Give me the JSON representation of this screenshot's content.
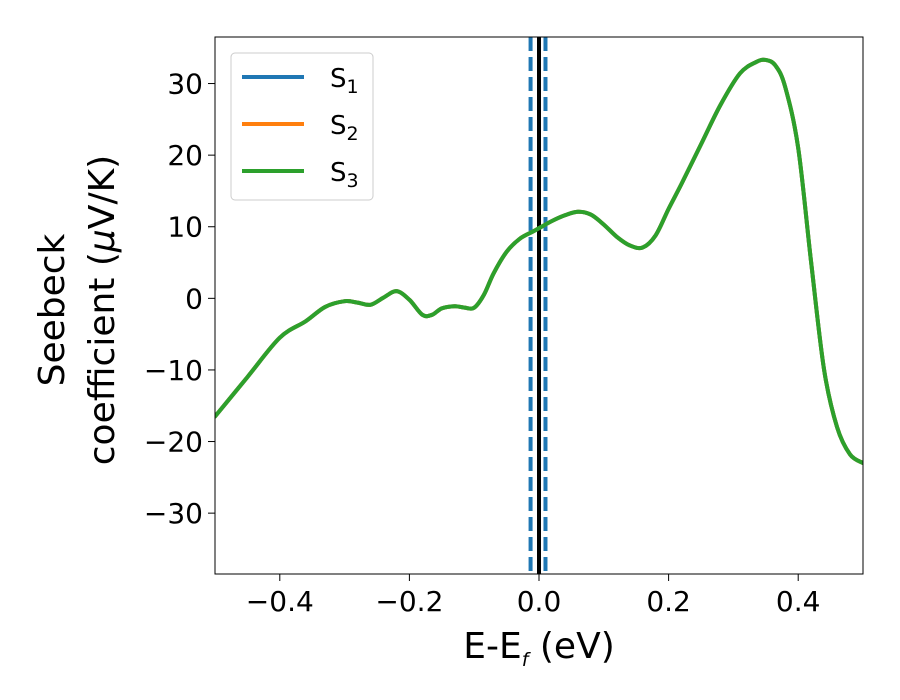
{
  "chart_data": {
    "type": "line",
    "xlabel": {
      "main": "E-E",
      "sub": "f",
      "suffix": " (eV)"
    },
    "ylabel": {
      "line1": "Seebeck",
      "line2_main": "coefficient  (",
      "line2_mu": "μ",
      "line2_suffix": "V/K)"
    },
    "xlim": [
      -0.5,
      0.5
    ],
    "ylim": [
      -38.5,
      36.5
    ],
    "xticks": [
      -0.4,
      -0.2,
      0.0,
      0.2,
      0.4
    ],
    "xtick_labels": [
      "−0.4",
      "−0.2",
      "0.0",
      "0.2",
      "0.4"
    ],
    "yticks": [
      -30,
      -20,
      -10,
      0,
      10,
      20,
      30
    ],
    "ytick_labels": [
      "−30",
      "−20",
      "−10",
      "0",
      "10",
      "20",
      "30"
    ],
    "grid": false,
    "legend": {
      "placement": "top-left",
      "entries": [
        {
          "main": "S",
          "sub": "1",
          "color": "#1f77b4"
        },
        {
          "main": "S",
          "sub": "2",
          "color": "#ff7f0e"
        },
        {
          "main": "S",
          "sub": "3",
          "color": "#2ca02c"
        }
      ]
    },
    "vlines": [
      {
        "x": -0.013,
        "style": "dashed",
        "color": "#1f77b4"
      },
      {
        "x": 0.0,
        "style": "solid",
        "color": "#000000"
      },
      {
        "x": 0.01,
        "style": "dashed",
        "color": "#1f77b4"
      }
    ],
    "x": [
      -0.5,
      -0.45,
      -0.4,
      -0.36,
      -0.33,
      -0.3,
      -0.28,
      -0.26,
      -0.24,
      -0.22,
      -0.2,
      -0.18,
      -0.165,
      -0.15,
      -0.13,
      -0.115,
      -0.1,
      -0.085,
      -0.07,
      -0.05,
      -0.03,
      -0.01,
      0.0,
      0.02,
      0.04,
      0.06,
      0.08,
      0.1,
      0.12,
      0.14,
      0.16,
      0.18,
      0.2,
      0.22,
      0.25,
      0.28,
      0.31,
      0.335,
      0.35,
      0.365,
      0.38,
      0.4,
      0.42,
      0.44,
      0.46,
      0.48,
      0.5
    ],
    "series": [
      {
        "name": "S1",
        "color": "#1f77b4",
        "values": [
          -16.5,
          -11.0,
          -5.5,
          -3.2,
          -1.2,
          -0.4,
          -0.6,
          -0.9,
          0.1,
          1.0,
          -0.2,
          -2.3,
          -2.3,
          -1.4,
          -1.1,
          -1.3,
          -1.3,
          0.5,
          3.5,
          6.5,
          8.3,
          9.3,
          9.8,
          10.8,
          11.6,
          12.1,
          11.7,
          10.3,
          8.6,
          7.4,
          7.1,
          8.8,
          12.5,
          16.0,
          21.5,
          27.0,
          31.4,
          33.0,
          33.3,
          32.5,
          29.5,
          21.0,
          5.0,
          -10.0,
          -18.0,
          -21.8,
          -23.0
        ]
      },
      {
        "name": "S2",
        "color": "#ff7f0e",
        "values": [
          -16.5,
          -11.0,
          -5.5,
          -3.2,
          -1.2,
          -0.4,
          -0.6,
          -0.9,
          0.1,
          1.0,
          -0.2,
          -2.3,
          -2.3,
          -1.4,
          -1.1,
          -1.3,
          -1.3,
          0.5,
          3.5,
          6.5,
          8.3,
          9.3,
          9.8,
          10.8,
          11.6,
          12.1,
          11.7,
          10.3,
          8.6,
          7.4,
          7.1,
          8.8,
          12.5,
          16.0,
          21.5,
          27.0,
          31.4,
          33.0,
          33.3,
          32.5,
          29.5,
          21.0,
          5.0,
          -10.0,
          -18.0,
          -21.8,
          -23.0
        ]
      },
      {
        "name": "S3",
        "color": "#2ca02c",
        "values": [
          -16.5,
          -11.0,
          -5.5,
          -3.2,
          -1.2,
          -0.4,
          -0.6,
          -0.9,
          0.1,
          1.0,
          -0.2,
          -2.3,
          -2.3,
          -1.4,
          -1.1,
          -1.3,
          -1.3,
          0.5,
          3.5,
          6.5,
          8.3,
          9.3,
          9.8,
          10.8,
          11.6,
          12.1,
          11.7,
          10.3,
          8.6,
          7.4,
          7.1,
          8.8,
          12.5,
          16.0,
          21.5,
          27.0,
          31.4,
          33.0,
          33.3,
          32.5,
          29.5,
          21.0,
          5.0,
          -10.0,
          -18.0,
          -21.8,
          -23.0
        ]
      }
    ]
  }
}
